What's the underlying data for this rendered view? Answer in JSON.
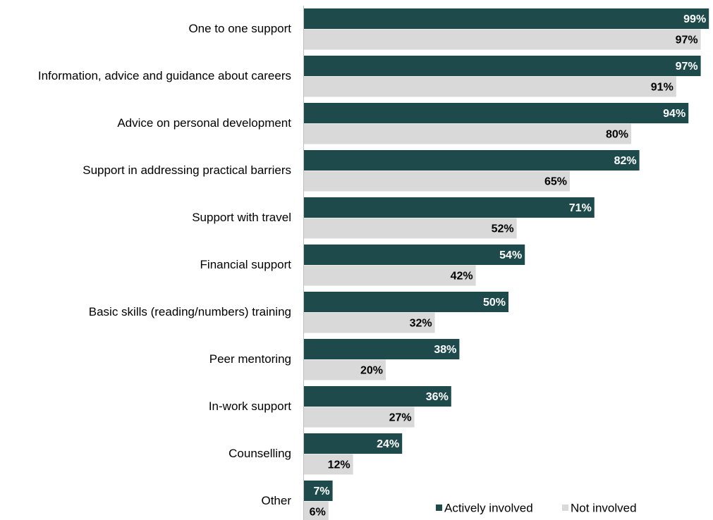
{
  "chart_data": {
    "type": "bar",
    "orientation": "horizontal",
    "categories": [
      "One to one support",
      "Information, advice and guidance about careers",
      "Advice on personal development",
      "Support in addressing practical barriers",
      "Support with travel",
      "Financial support",
      "Basic skills (reading/numbers) training",
      "Peer mentoring",
      "In-work support",
      "Counselling",
      "Other"
    ],
    "series": [
      {
        "name": "Actively involved",
        "color": "#1f4a4c",
        "label_color": "#ffffff",
        "values": [
          99,
          97,
          94,
          82,
          71,
          54,
          50,
          38,
          36,
          24,
          7
        ],
        "value_labels": [
          "99%",
          "97%",
          "94%",
          "82%",
          "71%",
          "54%",
          "50%",
          "38%",
          "36%",
          "24%",
          "7%"
        ]
      },
      {
        "name": "Not involved",
        "color": "#d9d9d9",
        "label_color": "#000000",
        "values": [
          97,
          91,
          80,
          65,
          52,
          42,
          32,
          20,
          27,
          12,
          6
        ],
        "value_labels": [
          "97%",
          "91%",
          "80%",
          "65%",
          "52%",
          "42%",
          "32%",
          "20%",
          "27%",
          "12%",
          "6%"
        ]
      }
    ],
    "xlim": [
      0,
      100
    ],
    "legend": "bottom-right"
  }
}
